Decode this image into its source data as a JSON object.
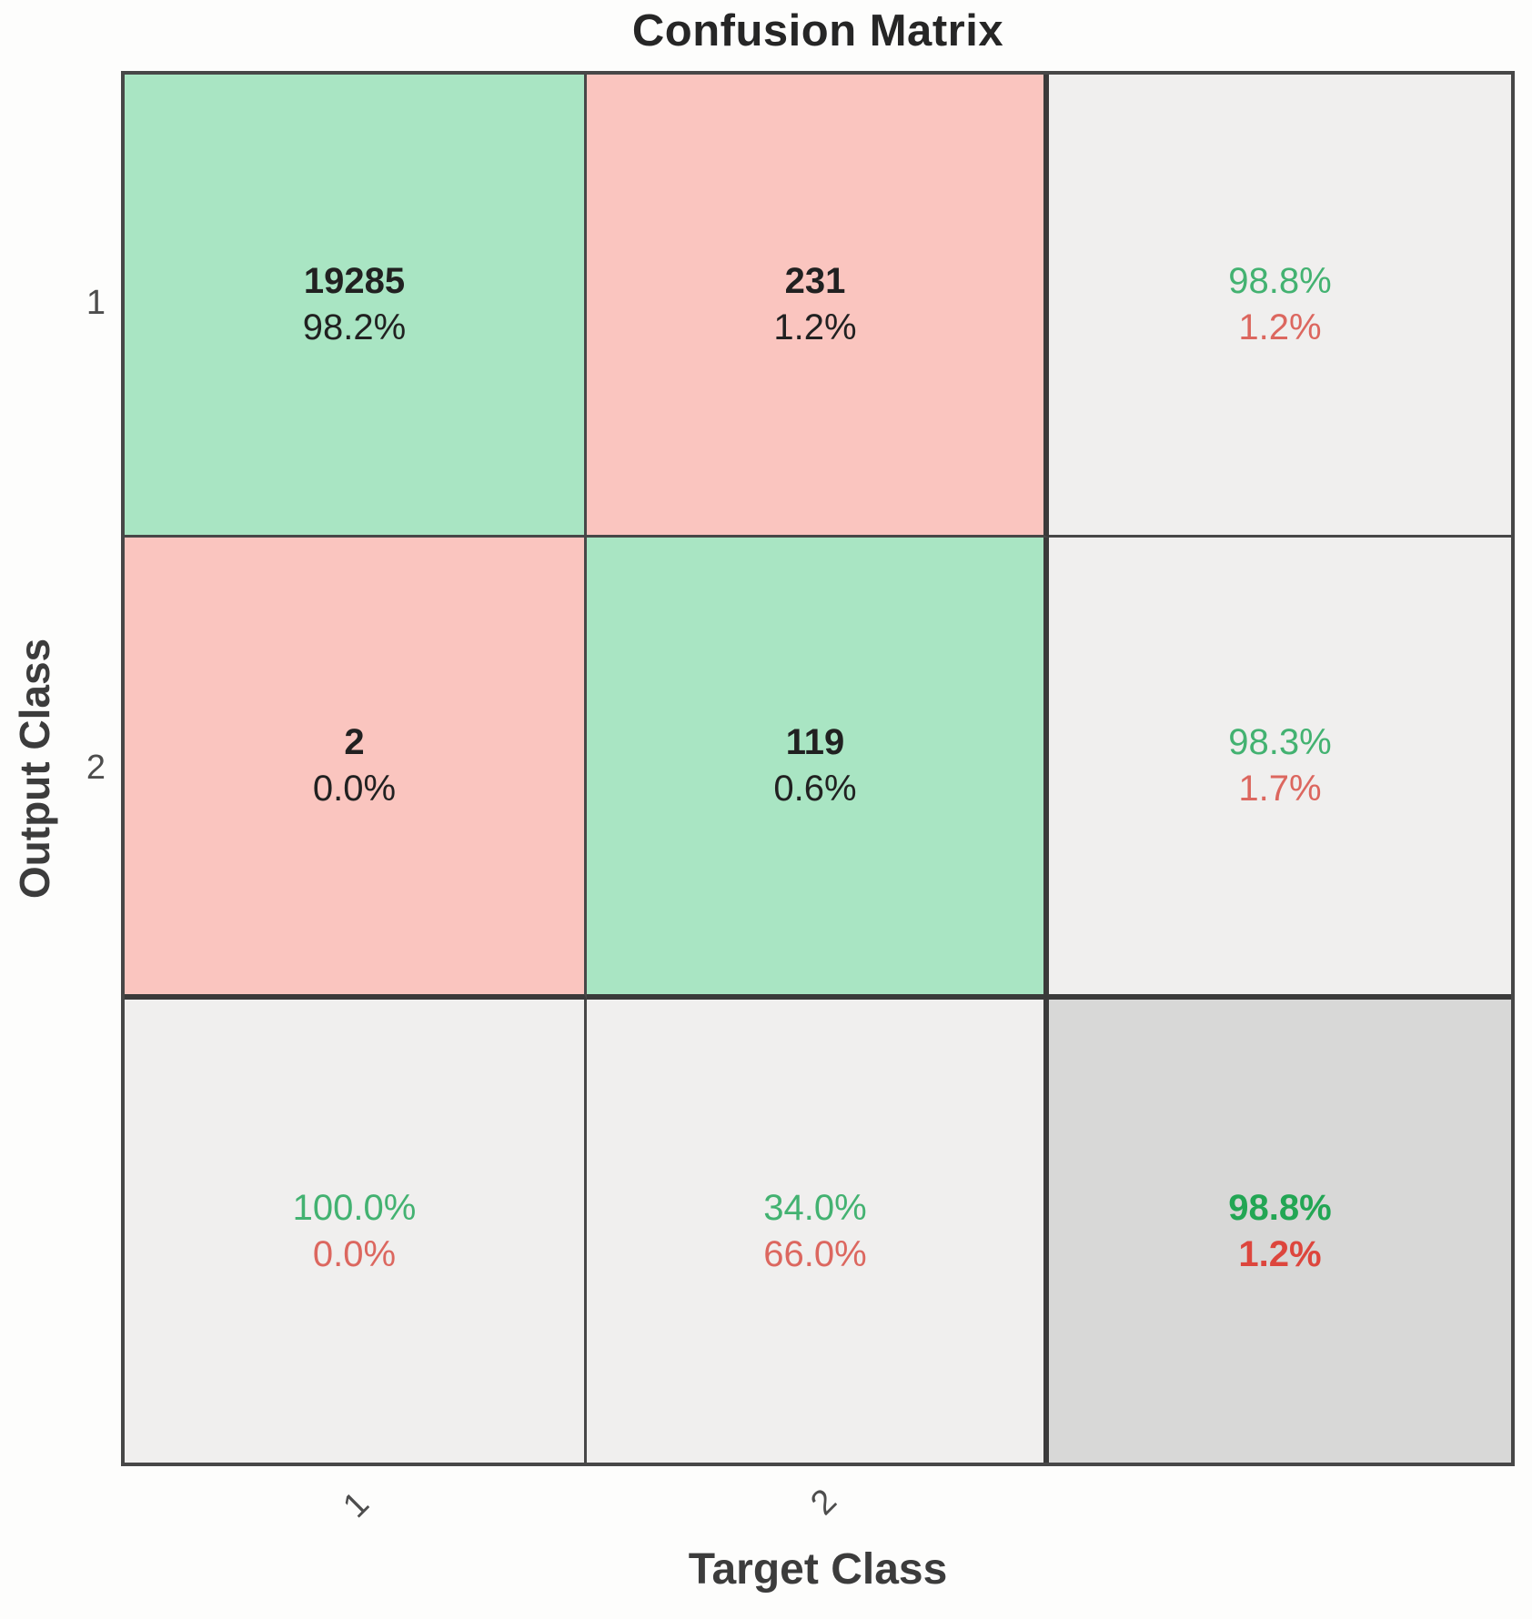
{
  "title": "Confusion Matrix",
  "axes": {
    "x_label": "Target Class",
    "y_label": "Output Class",
    "x_ticks": [
      "1",
      "2"
    ],
    "y_ticks": [
      "1",
      "2"
    ]
  },
  "matrix_cells": {
    "r1c1": {
      "line1": "19285",
      "line2": "98.2%"
    },
    "r1c2": {
      "line1": "231",
      "line2": "1.2%"
    },
    "r1c3": {
      "line1": "98.8%",
      "line2": "1.2%"
    },
    "r2c1": {
      "line1": "2",
      "line2": "0.0%"
    },
    "r2c2": {
      "line1": "119",
      "line2": "0.6%"
    },
    "r2c3": {
      "line1": "98.3%",
      "line2": "1.7%"
    },
    "r3c1": {
      "line1": "100.0%",
      "line2": "0.0%"
    },
    "r3c2": {
      "line1": "34.0%",
      "line2": "66.0%"
    },
    "r3c3": {
      "line1": "98.8%",
      "line2": "1.2%"
    }
  },
  "chart_data": {
    "type": "heatmap",
    "title": "Confusion Matrix",
    "xlabel": "Target Class",
    "ylabel": "Output Class",
    "classes": [
      "1",
      "2"
    ],
    "matrix_counts": [
      [
        19285,
        231
      ],
      [
        2,
        119
      ]
    ],
    "matrix_percent_of_total": [
      [
        "98.2%",
        "1.2%"
      ],
      [
        "0.0%",
        "0.6%"
      ]
    ],
    "output_class_summary_rows": [
      {
        "class": "1",
        "correct": "98.8%",
        "incorrect": "1.2%"
      },
      {
        "class": "2",
        "correct": "98.3%",
        "incorrect": "1.7%"
      }
    ],
    "target_class_summary_cols": [
      {
        "class": "1",
        "correct": "100.0%",
        "incorrect": "0.0%"
      },
      {
        "class": "2",
        "correct": "34.0%",
        "incorrect": "66.0%"
      }
    ],
    "overall": {
      "accuracy": "98.8%",
      "error": "1.2%"
    },
    "legend_position": "none",
    "grid": true
  },
  "colors": {
    "correct_bg": "#a9e5c3",
    "incorrect_bg": "#fac5bf",
    "summary_bg": "#f0efee",
    "total_bg": "#d8d8d7",
    "green_text": "#43b271",
    "red_text": "#dc675f",
    "green_bold": "#23a654",
    "red_bold": "#dd463d",
    "dark_text": "#212121",
    "line": "#474747",
    "line_strong": "#3a3a3a",
    "axis_text": "#3c3c3c"
  }
}
